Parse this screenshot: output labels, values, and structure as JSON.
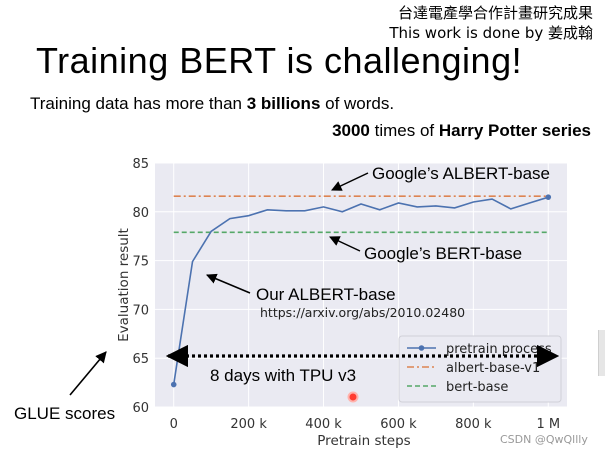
{
  "header": {
    "credit_line1": "台達電產學合作計畫研究成果",
    "credit_line2": "This work is done by 姜成翰"
  },
  "slide": {
    "title": "Training BERT is challenging!",
    "subtitle_pre": "Training data has more than ",
    "subtitle_bold": "3 billions",
    "subtitle_post": " of words.",
    "line2_num": "3000",
    "line2_mid": " times of ",
    "line2_bold": "Harry Potter series"
  },
  "annotations": {
    "google_albert": "Google’s ALBERT-base",
    "google_bert": "Google’s BERT-base",
    "our_albert": "Our ALBERT-base",
    "url": "https://arxiv.org/abs/2010.02480",
    "tpu": "8 days with TPU v3",
    "glue": "GLUE scores",
    "watermark": "CSDN @QwQllly"
  },
  "chart_data": {
    "type": "line",
    "xlabel": "Pretrain steps",
    "ylabel": "Evaluation result",
    "xlim": [
      -50000,
      1050000
    ],
    "ylim": [
      60,
      85
    ],
    "x_ticks": [
      0,
      200000,
      400000,
      600000,
      800000,
      1000000
    ],
    "x_tick_labels": [
      "0",
      "200 k",
      "400 k",
      "600 k",
      "800 k",
      "1 M"
    ],
    "y_ticks": [
      60,
      65,
      70,
      75,
      80,
      85
    ],
    "y_tick_labels": [
      "60",
      "65",
      "70",
      "75",
      "80",
      "85"
    ],
    "grid": true,
    "legend_position": "lower-right",
    "series": [
      {
        "name": "pretrain process",
        "style": "line-marker",
        "color": "#4c72b0",
        "x": [
          0,
          50000,
          100000,
          150000,
          200000,
          250000,
          300000,
          350000,
          400000,
          450000,
          500000,
          550000,
          600000,
          650000,
          700000,
          750000,
          800000,
          850000,
          900000,
          950000,
          1000000
        ],
        "y": [
          62.3,
          74.9,
          78.0,
          79.3,
          79.6,
          80.2,
          80.1,
          80.1,
          80.5,
          80.0,
          80.8,
          80.2,
          80.9,
          80.5,
          80.6,
          80.4,
          81.0,
          81.3,
          80.3,
          80.9,
          81.5
        ]
      },
      {
        "name": "albert-base-v1",
        "style": "dashdot",
        "color": "#dd8452",
        "value": 81.6
      },
      {
        "name": "bert-base",
        "style": "dashed",
        "color": "#55a868",
        "value": 77.9
      }
    ]
  }
}
